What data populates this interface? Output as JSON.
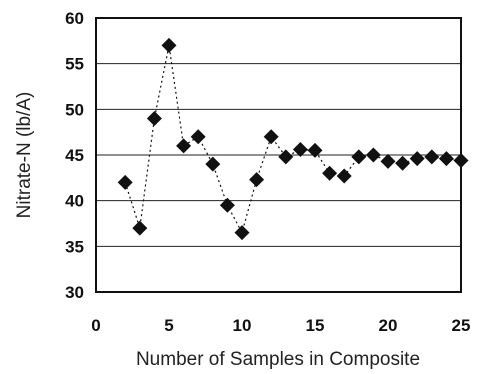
{
  "chart_data": {
    "type": "line",
    "title": "",
    "xlabel": "Number of Samples in Composite",
    "ylabel": "Nitrate-N (lb/A)",
    "xlim": [
      0,
      25
    ],
    "ylim": [
      30,
      60
    ],
    "x_ticks": [
      "0",
      "5",
      "10",
      "15",
      "20",
      "25"
    ],
    "y_ticks": [
      "30",
      "35",
      "40",
      "45",
      "50",
      "55",
      "60"
    ],
    "grid": "horizontal",
    "legend": "none",
    "marker": "diamond",
    "line_style": "dotted",
    "colors": {
      "series": "#111111",
      "grid": "#222222",
      "background": "#ffffff"
    },
    "series": [
      {
        "x": [
          2,
          3,
          4,
          5,
          6,
          7,
          8,
          9,
          10,
          11,
          12,
          13,
          14,
          15,
          16,
          17,
          18,
          19,
          20,
          21,
          22,
          23,
          24,
          25
        ],
        "values": [
          42,
          37,
          49,
          57,
          46,
          47,
          44,
          39.5,
          36.5,
          42.3,
          47,
          44.8,
          45.6,
          45.5,
          43,
          42.7,
          44.8,
          45,
          44.3,
          44.1,
          44.6,
          44.8,
          44.6,
          44.4
        ]
      }
    ]
  }
}
